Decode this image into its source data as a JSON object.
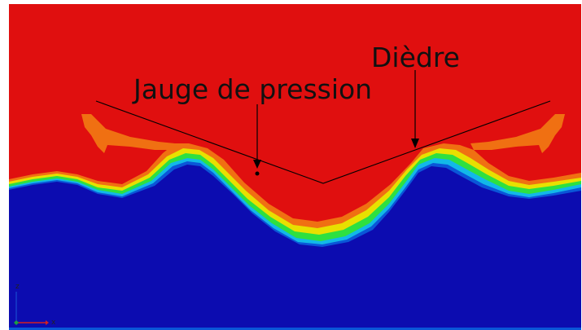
{
  "labels": {
    "dihedral": "Dièdre",
    "pressure_gauge": "Jauge de pression"
  },
  "axes": {
    "z": "z",
    "x": "x"
  },
  "colors": {
    "fluid_top": "#e00f0f",
    "fluid_bottom": "#0c0cb0",
    "band_orange": "#f07012",
    "band_yellow": "#e8e000",
    "band_green": "#2ee040",
    "band_cyan": "#12b8e8",
    "band_blue": "#0a56d8",
    "annotation": "#000000",
    "axis_x": "#d42020",
    "axis_z": "#1aa040"
  }
}
